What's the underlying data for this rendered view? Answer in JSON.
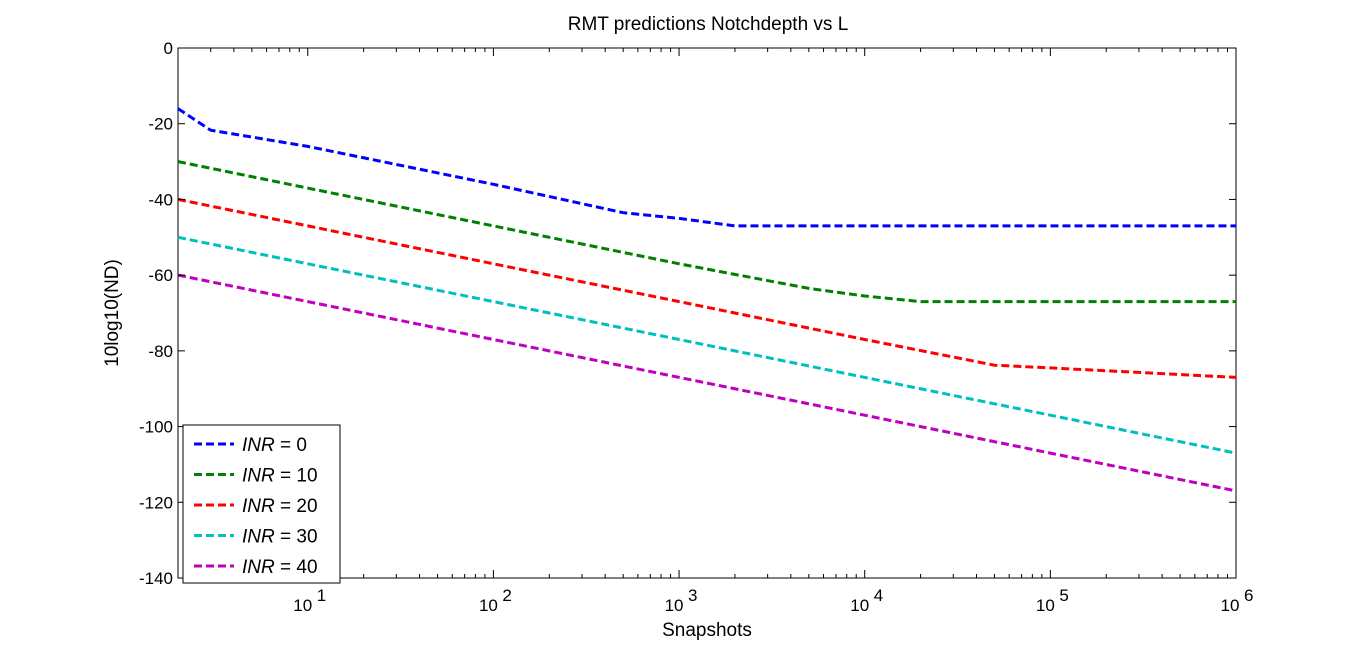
{
  "chart_data": {
    "type": "line",
    "title": "RMT predictions Notchdepth vs L",
    "xlabel": "Snapshots",
    "ylabel": "10log10(ND)",
    "xscale": "log",
    "xlim": [
      2,
      1000000
    ],
    "ylim": [
      -140,
      0
    ],
    "grid": false,
    "legend_position": "bottom-left",
    "line_style": "dashed",
    "x_ticks": [
      {
        "value": 10,
        "base": "10",
        "exp": "1"
      },
      {
        "value": 100,
        "base": "10",
        "exp": "2"
      },
      {
        "value": 1000,
        "base": "10",
        "exp": "3"
      },
      {
        "value": 10000,
        "base": "10",
        "exp": "4"
      },
      {
        "value": 100000,
        "base": "10",
        "exp": "5"
      },
      {
        "value": 1000000,
        "base": "10",
        "exp": "6"
      }
    ],
    "y_ticks": [
      {
        "value": 0,
        "label": "0"
      },
      {
        "value": -20,
        "label": "-20"
      },
      {
        "value": -40,
        "label": "-40"
      },
      {
        "value": -60,
        "label": "-60"
      },
      {
        "value": -80,
        "label": "-80"
      },
      {
        "value": -100,
        "label": "-100"
      },
      {
        "value": -120,
        "label": "-120"
      },
      {
        "value": -140,
        "label": "-140"
      }
    ],
    "series": [
      {
        "legend_var": "INR",
        "legend_rest": " = 0",
        "color": "#0000ff",
        "points": [
          [
            2,
            -16
          ],
          [
            3,
            -21.7
          ],
          [
            10,
            -26
          ],
          [
            100,
            -36
          ],
          [
            500,
            -43.5
          ],
          [
            1000,
            -45
          ],
          [
            2000,
            -47
          ],
          [
            10000,
            -47
          ],
          [
            1000000,
            -47
          ]
        ]
      },
      {
        "legend_var": "INR",
        "legend_rest": " = 10",
        "color": "#008000",
        "points": [
          [
            2,
            -30
          ],
          [
            10,
            -37
          ],
          [
            100,
            -47
          ],
          [
            1000,
            -57
          ],
          [
            5000,
            -63.5
          ],
          [
            10000,
            -65.5
          ],
          [
            20000,
            -67
          ],
          [
            100000,
            -67
          ],
          [
            1000000,
            -67
          ]
        ]
      },
      {
        "legend_var": "INR",
        "legend_rest": " = 20",
        "color": "#ff0000",
        "points": [
          [
            2,
            -40
          ],
          [
            10,
            -47
          ],
          [
            100,
            -57
          ],
          [
            1000,
            -67
          ],
          [
            10000,
            -77
          ],
          [
            50000,
            -83.8
          ],
          [
            100000,
            -84.5
          ],
          [
            1000000,
            -87
          ]
        ]
      },
      {
        "legend_var": "INR",
        "legend_rest": " = 30",
        "color": "#00bfbf",
        "points": [
          [
            2,
            -50
          ],
          [
            10,
            -57
          ],
          [
            100,
            -67
          ],
          [
            1000,
            -77
          ],
          [
            10000,
            -87
          ],
          [
            100000,
            -97
          ],
          [
            1000000,
            -107
          ]
        ]
      },
      {
        "legend_var": "INR",
        "legend_rest": " = 40",
        "color": "#bf00bf",
        "points": [
          [
            2,
            -60
          ],
          [
            10,
            -67
          ],
          [
            100,
            -77
          ],
          [
            1000,
            -87
          ],
          [
            10000,
            -97
          ],
          [
            100000,
            -107
          ],
          [
            1000000,
            -117
          ]
        ]
      }
    ]
  }
}
